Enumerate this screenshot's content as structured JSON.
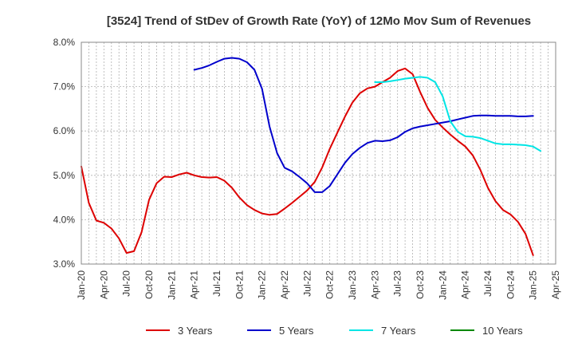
{
  "chart_data": {
    "type": "line",
    "title": "[3524]  Trend of StDev of Growth Rate (YoY) of 12Mo Mov Sum of Revenues",
    "ylim": [
      3.0,
      8.0
    ],
    "y_ticks": [
      "3.0%",
      "4.0%",
      "5.0%",
      "6.0%",
      "7.0%",
      "8.0%"
    ],
    "y_tick_values": [
      3.0,
      4.0,
      5.0,
      6.0,
      7.0,
      8.0
    ],
    "x_tick_labels": [
      "Jan-20",
      "Apr-20",
      "Jul-20",
      "Oct-20",
      "Jan-21",
      "Apr-21",
      "Jul-21",
      "Oct-21",
      "Jan-22",
      "Apr-22",
      "Jul-22",
      "Oct-22",
      "Jan-23",
      "Apr-23",
      "Jul-23",
      "Oct-23",
      "Jan-24",
      "Apr-24",
      "Jul-24",
      "Oct-24",
      "Jan-25",
      "Apr-25"
    ],
    "x_start": "Jan-20",
    "x_months_total": 63,
    "grid": true,
    "legend_position": "bottom",
    "series": [
      {
        "name": "3 Years",
        "color": "#dd0000",
        "start_month": 0,
        "values": [
          5.2,
          4.38,
          3.98,
          3.93,
          3.8,
          3.58,
          3.25,
          3.29,
          3.72,
          4.45,
          4.82,
          4.97,
          4.96,
          5.02,
          5.06,
          5.0,
          4.96,
          4.95,
          4.96,
          4.88,
          4.72,
          4.5,
          4.33,
          4.22,
          4.14,
          4.11,
          4.13,
          4.25,
          4.38,
          4.52,
          4.66,
          4.85,
          5.18,
          5.6,
          5.96,
          6.32,
          6.64,
          6.85,
          6.96,
          7.0,
          7.1,
          7.2,
          7.35,
          7.41,
          7.28,
          6.88,
          6.52,
          6.25,
          6.08,
          5.92,
          5.78,
          5.65,
          5.45,
          5.12,
          4.72,
          4.42,
          4.22,
          4.12,
          3.95,
          3.68,
          3.2
        ]
      },
      {
        "name": "5 Years",
        "color": "#0000cc",
        "start_month": 15,
        "values": [
          7.38,
          7.42,
          7.48,
          7.56,
          7.63,
          7.65,
          7.63,
          7.55,
          7.38,
          6.95,
          6.1,
          5.5,
          5.17,
          5.09,
          4.96,
          4.82,
          4.62,
          4.62,
          4.76,
          5.02,
          5.28,
          5.48,
          5.62,
          5.73,
          5.78,
          5.77,
          5.79,
          5.86,
          5.98,
          6.06,
          6.1,
          6.13,
          6.16,
          6.19,
          6.22,
          6.26,
          6.3,
          6.34,
          6.35,
          6.35,
          6.34,
          6.34,
          6.34,
          6.33,
          6.33,
          6.34
        ]
      },
      {
        "name": "7 Years",
        "color": "#00e5e5",
        "start_month": 39,
        "values": [
          7.1,
          7.1,
          7.12,
          7.15,
          7.18,
          7.2,
          7.22,
          7.2,
          7.1,
          6.78,
          6.22,
          5.98,
          5.88,
          5.87,
          5.84,
          5.78,
          5.72,
          5.7,
          5.7,
          5.69,
          5.68,
          5.65,
          5.55
        ]
      },
      {
        "name": "10 Years",
        "color": "#008800",
        "start_month": 0,
        "values": []
      }
    ]
  }
}
